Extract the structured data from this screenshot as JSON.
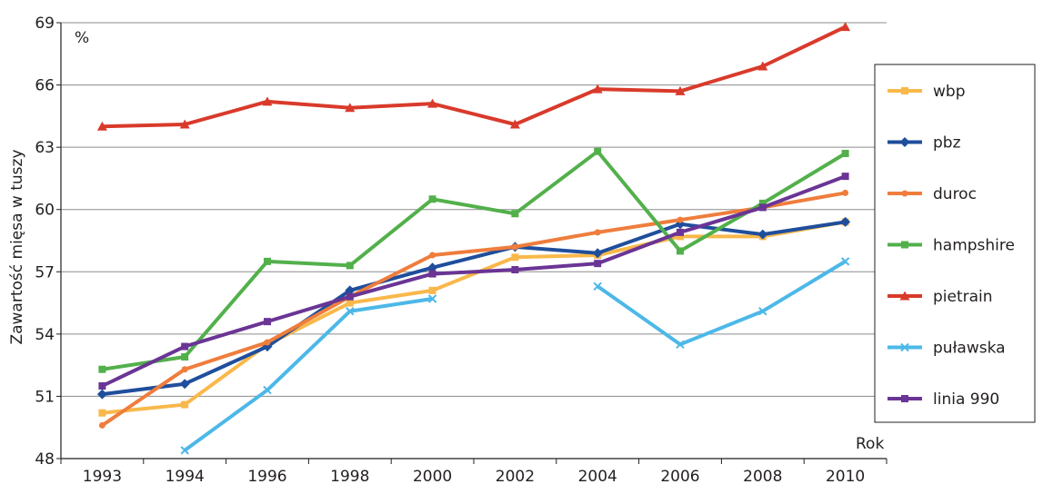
{
  "chart_data": {
    "type": "line",
    "ylabel": "Zawartość mięsa w tuszy",
    "yunit": "%",
    "xlabel": "Rok",
    "categories": [
      "1993",
      "1994",
      "1996",
      "1998",
      "2000",
      "2002",
      "2004",
      "2006",
      "2008",
      "2010"
    ],
    "ylim": [
      48,
      69
    ],
    "yticks": [
      "48",
      "51",
      "54",
      "57",
      "60",
      "63",
      "66",
      "69"
    ],
    "grid": "horizontal",
    "legend_position": "right",
    "series": [
      {
        "name": "wbp",
        "color": "#f9b84a",
        "marker": "square",
        "values": [
          50.2,
          50.6,
          53.5,
          55.5,
          56.1,
          57.7,
          57.8,
          58.7,
          58.7,
          59.4
        ]
      },
      {
        "name": "pbz",
        "color": "#1f4e9c",
        "marker": "diamond",
        "values": [
          51.1,
          51.6,
          53.4,
          56.1,
          57.2,
          58.2,
          57.9,
          59.3,
          58.8,
          59.4
        ]
      },
      {
        "name": "duroc",
        "color": "#ef7d3c",
        "marker": "circle",
        "values": [
          49.6,
          52.3,
          53.6,
          55.8,
          57.8,
          58.2,
          58.9,
          59.5,
          60.1,
          60.8
        ]
      },
      {
        "name": "hampshire",
        "color": "#52b04b",
        "marker": "square",
        "values": [
          52.3,
          52.9,
          57.5,
          57.3,
          60.5,
          59.8,
          62.8,
          58.0,
          60.3,
          62.7
        ]
      },
      {
        "name": "pietrain",
        "color": "#d93a2b",
        "marker": "triangle",
        "values": [
          64.0,
          64.1,
          65.2,
          64.9,
          65.1,
          64.1,
          65.8,
          65.7,
          66.9,
          68.8
        ]
      },
      {
        "name": "puławska",
        "color": "#4cb8e8",
        "marker": "x",
        "values": [
          null,
          48.4,
          51.3,
          55.1,
          55.7,
          null,
          56.3,
          53.5,
          55.1,
          57.5
        ]
      },
      {
        "name": "linia 990",
        "color": "#6a3595",
        "marker": "square",
        "values": [
          51.5,
          53.4,
          54.6,
          55.8,
          56.9,
          57.1,
          57.4,
          58.9,
          60.1,
          61.6
        ]
      }
    ]
  }
}
